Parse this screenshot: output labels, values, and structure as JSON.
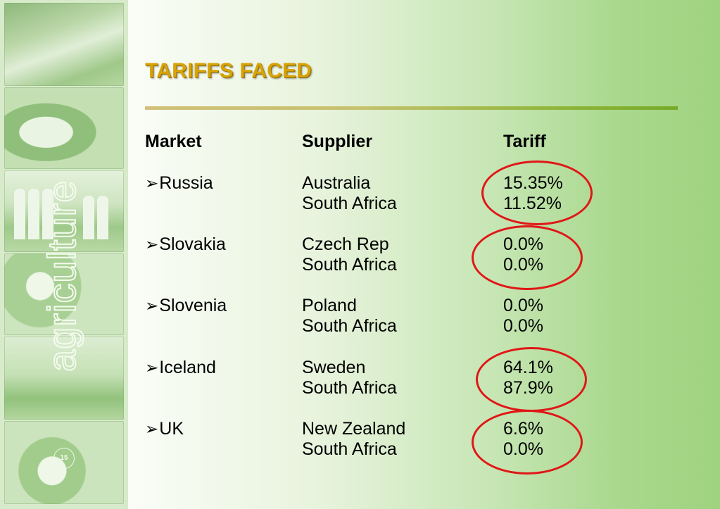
{
  "slide": {
    "title": "TARIFFS FACED",
    "page_number": "15",
    "watermark": "agriculture"
  },
  "table": {
    "headers": {
      "market": "Market",
      "supplier": "Supplier",
      "tariff": "Tariff"
    },
    "bullet_symbol": "➢",
    "rows": [
      {
        "market": "Russia",
        "entries": [
          {
            "supplier": "Australia",
            "tariff": "15.35%"
          },
          {
            "supplier": "South Africa",
            "tariff": "11.52%"
          }
        ]
      },
      {
        "market": "Slovakia",
        "entries": [
          {
            "supplier": "Czech Rep",
            "tariff": "0.0%"
          },
          {
            "supplier": "South Africa",
            "tariff": "0.0%"
          }
        ]
      },
      {
        "market": "Slovenia",
        "entries": [
          {
            "supplier": "Poland",
            "tariff": "0.0%"
          },
          {
            "supplier": "South Africa",
            "tariff": "0.0%"
          }
        ]
      },
      {
        "market": "Iceland",
        "entries": [
          {
            "supplier": "Sweden",
            "tariff": "64.1%"
          },
          {
            "supplier": "South Africa",
            "tariff": "87.9%"
          }
        ]
      },
      {
        "market": "UK",
        "entries": [
          {
            "supplier": "New Zealand",
            "tariff": "6.6%"
          },
          {
            "supplier": "South Africa",
            "tariff": "0.0%"
          }
        ]
      }
    ]
  },
  "colors": {
    "title": "#d8a305",
    "highlight_oval": "#e01717",
    "rule_start": "#d2c078",
    "rule_end": "#76aa27"
  },
  "decorative_photos": [
    "market-stall-photo",
    "cow-photo",
    "grain-silos-photo",
    "cotton-plant-photo",
    "field-animals-photo",
    "sunflower-photo"
  ]
}
